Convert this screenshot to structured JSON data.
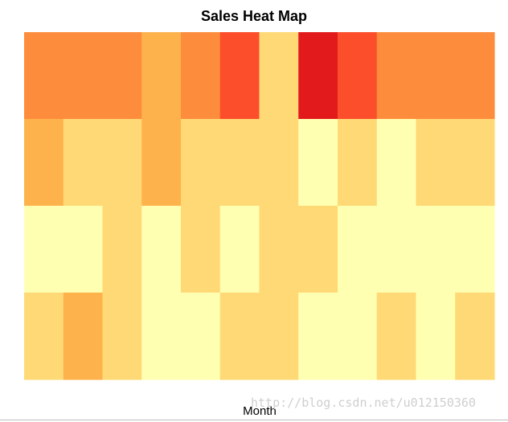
{
  "chart_data": {
    "type": "heatmap",
    "title": "Sales Heat Map",
    "xlabel": "Month",
    "ylabel": "",
    "rows": 4,
    "cols": 12,
    "values": [
      [
        4,
        4,
        4,
        3,
        4,
        5,
        2,
        6,
        5,
        4,
        4,
        4
      ],
      [
        3,
        2,
        2,
        3,
        2,
        2,
        2,
        1,
        2,
        1,
        2,
        2
      ],
      [
        1,
        1,
        2,
        1,
        2,
        1,
        2,
        2,
        1,
        1,
        1,
        1
      ],
      [
        2,
        3,
        2,
        1,
        1,
        2,
        2,
        1,
        1,
        2,
        1,
        2
      ]
    ],
    "color_scale": {
      "1": "#ffffb2",
      "2": "#fed976",
      "3": "#feb24c",
      "4": "#fd8d3c",
      "5": "#fc4e2a",
      "6": "#e31a1c"
    },
    "grid": false,
    "legend": "none"
  },
  "watermark": "http://blog.csdn.net/u012150360"
}
